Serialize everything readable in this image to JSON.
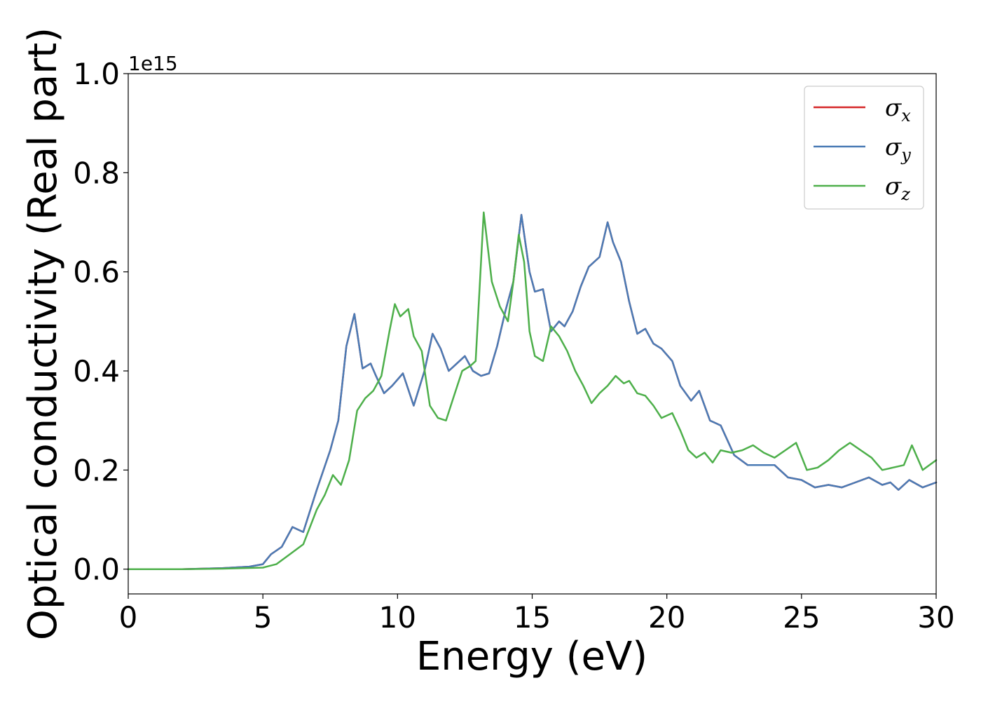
{
  "chart_data": {
    "type": "line",
    "xlabel": "Energy (eV)",
    "ylabel": "Optical conductivity (Real part)",
    "y_offset_text": "1e15",
    "xlim": [
      0,
      30
    ],
    "ylim": [
      -0.05,
      1.0
    ],
    "x_ticks": [
      0,
      5,
      10,
      15,
      20,
      25,
      30
    ],
    "x_tick_labels": [
      "0",
      "5",
      "10",
      "15",
      "20",
      "25",
      "30"
    ],
    "y_ticks": [
      0.0,
      0.2,
      0.4,
      0.6,
      0.8,
      1.0
    ],
    "y_tick_labels": [
      "0.0",
      "0.2",
      "0.4",
      "0.6",
      "0.8",
      "1.0"
    ],
    "grid": false,
    "legend_position": "top-right",
    "series": [
      {
        "name": "σx",
        "legend_symbol": "σ",
        "legend_subscript": "x",
        "color": "#d62728",
        "x": [
          0,
          2,
          3.5,
          4.5,
          5.0,
          5.3,
          5.7,
          6.1,
          6.5,
          7.0,
          7.5,
          7.8,
          8.1,
          8.4,
          8.7,
          9.0,
          9.2,
          9.5,
          9.8,
          10.2,
          10.6,
          11.0,
          11.3,
          11.6,
          11.9,
          12.2,
          12.5,
          12.8,
          13.1,
          13.4,
          13.7,
          14.0,
          14.3,
          14.6,
          14.9,
          15.1,
          15.4,
          15.7,
          16.0,
          16.2,
          16.5,
          16.8,
          17.1,
          17.5,
          17.8,
          18.0,
          18.3,
          18.6,
          18.9,
          19.2,
          19.5,
          19.8,
          20.2,
          20.5,
          20.9,
          21.2,
          21.6,
          22.0,
          22.5,
          23.0,
          23.5,
          24.0,
          24.5,
          25.0,
          25.5,
          26.0,
          26.5,
          27.0,
          27.5,
          28.0,
          28.3,
          28.6,
          29.0,
          29.5,
          30
        ],
        "y": [
          0.0,
          0.0,
          0.002,
          0.005,
          0.01,
          0.03,
          0.045,
          0.085,
          0.075,
          0.16,
          0.24,
          0.3,
          0.45,
          0.515,
          0.405,
          0.415,
          0.39,
          0.355,
          0.37,
          0.395,
          0.33,
          0.4,
          0.475,
          0.445,
          0.4,
          0.415,
          0.43,
          0.4,
          0.39,
          0.395,
          0.45,
          0.52,
          0.58,
          0.715,
          0.6,
          0.56,
          0.565,
          0.48,
          0.5,
          0.49,
          0.52,
          0.57,
          0.61,
          0.63,
          0.7,
          0.66,
          0.62,
          0.54,
          0.475,
          0.485,
          0.455,
          0.445,
          0.42,
          0.37,
          0.34,
          0.36,
          0.3,
          0.29,
          0.23,
          0.21,
          0.21,
          0.21,
          0.185,
          0.18,
          0.165,
          0.17,
          0.165,
          0.175,
          0.185,
          0.17,
          0.175,
          0.16,
          0.18,
          0.165,
          0.175
        ]
      },
      {
        "name": "σy",
        "legend_symbol": "σ",
        "legend_subscript": "y",
        "color": "#4a7bb5",
        "x": [
          0,
          2,
          3.5,
          4.5,
          5.0,
          5.3,
          5.7,
          6.1,
          6.5,
          7.0,
          7.5,
          7.8,
          8.1,
          8.4,
          8.7,
          9.0,
          9.2,
          9.5,
          9.8,
          10.2,
          10.6,
          11.0,
          11.3,
          11.6,
          11.9,
          12.2,
          12.5,
          12.8,
          13.1,
          13.4,
          13.7,
          14.0,
          14.3,
          14.6,
          14.9,
          15.1,
          15.4,
          15.7,
          16.0,
          16.2,
          16.5,
          16.8,
          17.1,
          17.5,
          17.8,
          18.0,
          18.3,
          18.6,
          18.9,
          19.2,
          19.5,
          19.8,
          20.2,
          20.5,
          20.9,
          21.2,
          21.6,
          22.0,
          22.5,
          23.0,
          23.5,
          24.0,
          24.5,
          25.0,
          25.5,
          26.0,
          26.5,
          27.0,
          27.5,
          28.0,
          28.3,
          28.6,
          29.0,
          29.5,
          30
        ],
        "y": [
          0.0,
          0.0,
          0.002,
          0.005,
          0.01,
          0.03,
          0.045,
          0.085,
          0.075,
          0.16,
          0.24,
          0.3,
          0.45,
          0.515,
          0.405,
          0.415,
          0.39,
          0.355,
          0.37,
          0.395,
          0.33,
          0.4,
          0.475,
          0.445,
          0.4,
          0.415,
          0.43,
          0.4,
          0.39,
          0.395,
          0.45,
          0.52,
          0.58,
          0.715,
          0.6,
          0.56,
          0.565,
          0.48,
          0.5,
          0.49,
          0.52,
          0.57,
          0.61,
          0.63,
          0.7,
          0.66,
          0.62,
          0.54,
          0.475,
          0.485,
          0.455,
          0.445,
          0.42,
          0.37,
          0.34,
          0.36,
          0.3,
          0.29,
          0.23,
          0.21,
          0.21,
          0.21,
          0.185,
          0.18,
          0.165,
          0.17,
          0.165,
          0.175,
          0.185,
          0.17,
          0.175,
          0.16,
          0.18,
          0.165,
          0.175
        ]
      },
      {
        "name": "σz",
        "legend_symbol": "σ",
        "legend_subscript": "z",
        "color": "#4daf4a",
        "x": [
          0,
          2,
          3.5,
          5.0,
          5.5,
          6.0,
          6.5,
          7.0,
          7.3,
          7.6,
          7.9,
          8.2,
          8.5,
          8.8,
          9.1,
          9.4,
          9.7,
          9.9,
          10.1,
          10.4,
          10.6,
          10.9,
          11.2,
          11.5,
          11.8,
          12.1,
          12.4,
          12.7,
          12.9,
          13.2,
          13.5,
          13.8,
          14.1,
          14.3,
          14.5,
          14.7,
          14.9,
          15.1,
          15.4,
          15.7,
          16.0,
          16.3,
          16.6,
          16.9,
          17.2,
          17.5,
          17.8,
          18.1,
          18.4,
          18.6,
          18.9,
          19.2,
          19.5,
          19.8,
          20.2,
          20.5,
          20.8,
          21.1,
          21.4,
          21.7,
          22.0,
          22.4,
          22.8,
          23.2,
          23.6,
          24.0,
          24.4,
          24.8,
          25.2,
          25.6,
          26.0,
          26.4,
          26.8,
          27.2,
          27.6,
          28.0,
          28.4,
          28.8,
          29.1,
          29.5,
          30
        ],
        "y": [
          0.0,
          0.0,
          0.001,
          0.003,
          0.01,
          0.03,
          0.05,
          0.12,
          0.15,
          0.19,
          0.17,
          0.22,
          0.32,
          0.345,
          0.36,
          0.39,
          0.48,
          0.535,
          0.51,
          0.525,
          0.47,
          0.44,
          0.33,
          0.305,
          0.3,
          0.35,
          0.4,
          0.41,
          0.42,
          0.72,
          0.58,
          0.53,
          0.5,
          0.58,
          0.675,
          0.62,
          0.48,
          0.43,
          0.42,
          0.49,
          0.47,
          0.44,
          0.4,
          0.37,
          0.335,
          0.355,
          0.37,
          0.39,
          0.375,
          0.38,
          0.355,
          0.35,
          0.33,
          0.305,
          0.315,
          0.28,
          0.24,
          0.225,
          0.235,
          0.215,
          0.24,
          0.235,
          0.24,
          0.25,
          0.235,
          0.225,
          0.24,
          0.255,
          0.2,
          0.205,
          0.22,
          0.24,
          0.255,
          0.24,
          0.225,
          0.2,
          0.205,
          0.21,
          0.25,
          0.2,
          0.22
        ]
      }
    ]
  }
}
